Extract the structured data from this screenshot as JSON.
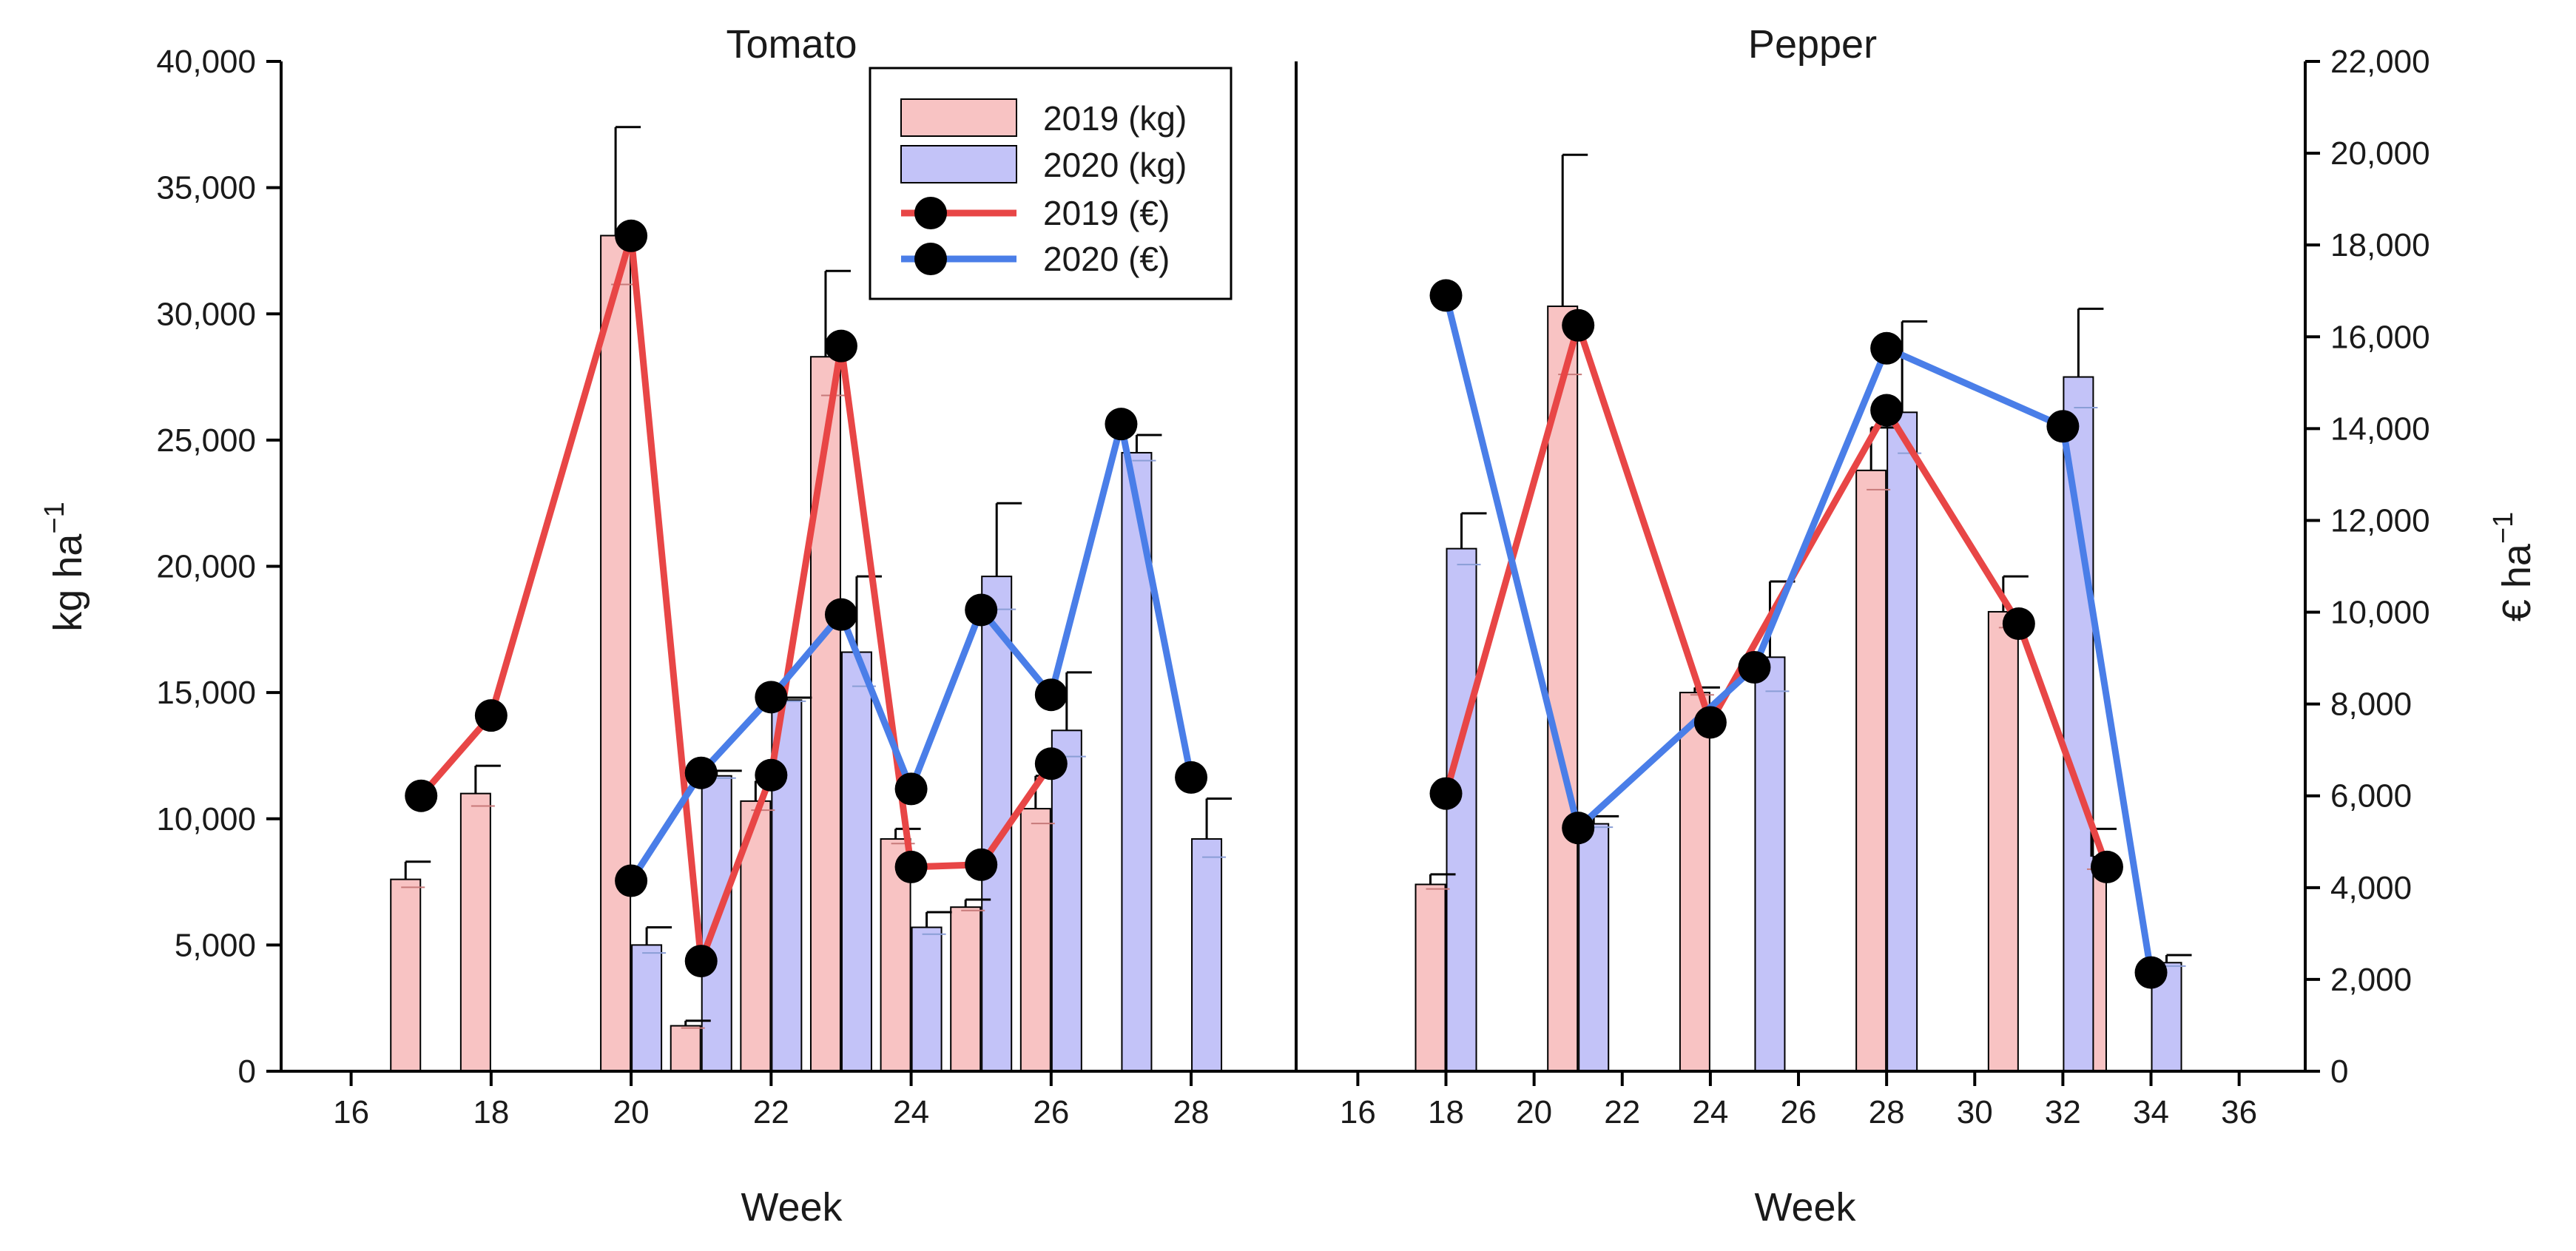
{
  "chart_data": {
    "type": "bar+line",
    "y_left": {
      "label": "kg ha",
      "superscript": "−1",
      "lim": [
        0,
        40000
      ],
      "ticks": [
        0,
        5000,
        10000,
        15000,
        20000,
        25000,
        30000,
        35000,
        40000
      ],
      "tick_labels": [
        "0",
        "5,000",
        "10,000",
        "15,000",
        "20,000",
        "25,000",
        "30,000",
        "35,000",
        "40,000"
      ]
    },
    "y_right": {
      "label": "€ ha",
      "superscript": "−1",
      "lim": [
        0,
        22000
      ],
      "ticks": [
        0,
        2000,
        4000,
        6000,
        8000,
        10000,
        12000,
        14000,
        16000,
        18000,
        20000,
        22000
      ],
      "tick_labels": [
        "0",
        "2,000",
        "4,000",
        "6,000",
        "8,000",
        "10,000",
        "12,000",
        "14,000",
        "16,000",
        "18,000",
        "20,000",
        "22,000"
      ]
    },
    "legend": {
      "position": "top-center",
      "entries": [
        {
          "key": "kg2019",
          "label": "2019 (kg)",
          "kind": "bar"
        },
        {
          "key": "kg2020",
          "label": "2020 (kg)",
          "kind": "bar"
        },
        {
          "key": "eur2019",
          "label": "2019 (€)",
          "kind": "line"
        },
        {
          "key": "eur2020",
          "label": "2020 (€)",
          "kind": "line"
        }
      ]
    },
    "colors": {
      "bar2019": "#f8c3c3",
      "bar2020": "#c3c3f8",
      "line2019": "#e84646",
      "line2020": "#4a7ee8",
      "marker": "#000000",
      "axis": "#000000",
      "err2019": "#c77a7a",
      "err2020": "#8a9ed6"
    },
    "panels": [
      {
        "title": "Tomato",
        "xlabel": "Week",
        "xlim": [
          15,
          29.5
        ],
        "xticks": [
          16,
          18,
          20,
          22,
          24,
          26,
          28
        ],
        "kg2019": [
          {
            "week": 17,
            "value": 7600,
            "err": 700
          },
          {
            "week": 18,
            "value": 11000,
            "err": 1100
          },
          {
            "week": 20,
            "value": 33100,
            "err": 4300
          },
          {
            "week": 21,
            "value": 1800,
            "err": 200
          },
          {
            "week": 22,
            "value": 10700,
            "err": 800
          },
          {
            "week": 23,
            "value": 28300,
            "err": 3400
          },
          {
            "week": 24,
            "value": 9200,
            "err": 400
          },
          {
            "week": 25,
            "value": 6500,
            "err": 300
          },
          {
            "week": 26,
            "value": 10400,
            "err": 1300
          }
        ],
        "kg2020": [
          {
            "week": 20,
            "value": 5000,
            "err": 700
          },
          {
            "week": 21,
            "value": 11700,
            "err": 200
          },
          {
            "week": 22,
            "value": 14700,
            "err": 100
          },
          {
            "week": 23,
            "value": 16600,
            "err": 3000
          },
          {
            "week": 24,
            "value": 5700,
            "err": 600
          },
          {
            "week": 25,
            "value": 19600,
            "err": 2900
          },
          {
            "week": 26,
            "value": 13500,
            "err": 2300
          },
          {
            "week": 27,
            "value": 24500,
            "err": 700
          },
          {
            "week": 28,
            "value": 9200,
            "err": 1600
          }
        ],
        "eur2019": [
          {
            "week": 17,
            "value": 6000
          },
          {
            "week": 18,
            "value": 7750
          },
          {
            "week": 20,
            "value": 18200
          },
          {
            "week": 21,
            "value": 2400
          },
          {
            "week": 22,
            "value": 6450
          },
          {
            "week": 23,
            "value": 15800
          },
          {
            "week": 24,
            "value": 4450
          },
          {
            "week": 25,
            "value": 4500
          },
          {
            "week": 26,
            "value": 6700
          }
        ],
        "eur2020": [
          {
            "week": 20,
            "value": 4150
          },
          {
            "week": 21,
            "value": 6500
          },
          {
            "week": 22,
            "value": 8150
          },
          {
            "week": 23,
            "value": 9950
          },
          {
            "week": 24,
            "value": 6150
          },
          {
            "week": 25,
            "value": 10050
          },
          {
            "week": 26,
            "value": 8200
          },
          {
            "week": 27,
            "value": 14100
          },
          {
            "week": 28,
            "value": 6400
          }
        ]
      },
      {
        "title": "Pepper",
        "xlabel": "Week",
        "xlim": [
          14.6,
          37.5
        ],
        "xticks": [
          16,
          18,
          20,
          22,
          24,
          26,
          28,
          30,
          32,
          34,
          36
        ],
        "kg2019": [
          {
            "week": 18,
            "value": 7400,
            "err": 400
          },
          {
            "week": 21,
            "value": 30300,
            "err": 6000
          },
          {
            "week": 24,
            "value": 15000,
            "err": 200
          },
          {
            "week": 28,
            "value": 23800,
            "err": 1700
          },
          {
            "week": 31,
            "value": 18200,
            "err": 1400
          },
          {
            "week": 33,
            "value": 8500,
            "err": 1100
          }
        ],
        "kg2020": [
          {
            "week": 18,
            "value": 20700,
            "err": 1400
          },
          {
            "week": 21,
            "value": 9800,
            "err": 300
          },
          {
            "week": 25,
            "value": 16400,
            "err": 3000
          },
          {
            "week": 28,
            "value": 26100,
            "err": 3600
          },
          {
            "week": 32,
            "value": 27500,
            "err": 2700
          },
          {
            "week": 34,
            "value": 4300,
            "err": 300
          }
        ],
        "eur2019": [
          {
            "week": 18,
            "value": 6050
          },
          {
            "week": 21,
            "value": 16250
          },
          {
            "week": 24,
            "value": 7600
          },
          {
            "week": 28,
            "value": 14400
          },
          {
            "week": 31,
            "value": 9750
          },
          {
            "week": 33,
            "value": 4450
          }
        ],
        "eur2020": [
          {
            "week": 18,
            "value": 16900
          },
          {
            "week": 21,
            "value": 5300
          },
          {
            "week": 25,
            "value": 8800
          },
          {
            "week": 28,
            "value": 15750
          },
          {
            "week": 32,
            "value": 14050
          },
          {
            "week": 34,
            "value": 2150
          }
        ]
      }
    ]
  }
}
